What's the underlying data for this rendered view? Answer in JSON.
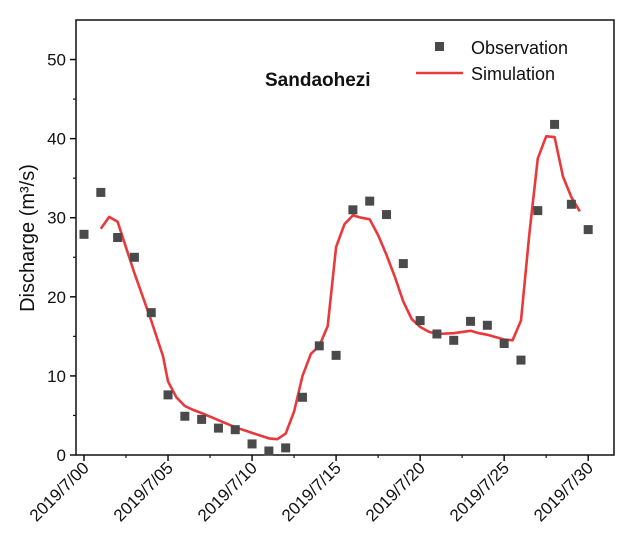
{
  "chart_data": {
    "type": "line",
    "title": "Sandaohezi",
    "xlabel": "",
    "ylabel": "Discharge  (m³/s)",
    "xlim": [
      0,
      31
    ],
    "ylim": [
      0,
      55
    ],
    "yticks": [
      0,
      10,
      20,
      30,
      40,
      50
    ],
    "ytick_labels": [
      "0",
      "10",
      "20",
      "30",
      "40",
      "50"
    ],
    "xticks": [
      0,
      5,
      10,
      15,
      20,
      25,
      30
    ],
    "xtick_labels": [
      "2019/7/00",
      "2019/7/05",
      "2019/7/10",
      "2019/7/15",
      "2019/7/20",
      "2019/7/25",
      "2019/7/30"
    ],
    "grid": false,
    "legend_position": "top-right",
    "series": [
      {
        "name": "Observation",
        "kind": "scatter",
        "marker": "square",
        "color": "#4a4a4a",
        "x": [
          0,
          1,
          2,
          3,
          4,
          5,
          6,
          7,
          8,
          9,
          10,
          11,
          12,
          13,
          14,
          15,
          16,
          17,
          18,
          19,
          20,
          21,
          22,
          23,
          24,
          25,
          26,
          27,
          28,
          29,
          30
        ],
        "y": [
          27.9,
          33.2,
          27.5,
          25.0,
          18.0,
          7.6,
          4.9,
          4.5,
          3.4,
          3.2,
          1.4,
          0.5,
          0.9,
          7.3,
          13.8,
          12.6,
          31.0,
          32.1,
          30.4,
          24.2,
          17.0,
          15.3,
          14.5,
          16.9,
          16.4,
          14.1,
          12.0,
          30.9,
          41.8,
          31.7,
          28.5
        ]
      },
      {
        "name": "Simulation",
        "kind": "line",
        "color": "#e8393c",
        "x": [
          1.0,
          1.5,
          2.0,
          3.0,
          4.0,
          4.7,
          5.0,
          5.5,
          6.0,
          6.5,
          7.0,
          8.0,
          9.0,
          10.0,
          11.0,
          11.5,
          12.0,
          12.5,
          13.0,
          13.5,
          14.0,
          14.5,
          15.0,
          15.5,
          16.0,
          16.5,
          17.0,
          17.5,
          18.0,
          18.5,
          19.0,
          19.5,
          20.0,
          20.5,
          21.0,
          22.0,
          23.0,
          23.5,
          24.0,
          25.0,
          25.5,
          26.0,
          26.5,
          27.0,
          27.5,
          28.0,
          28.5,
          29.0,
          29.5
        ],
        "y": [
          28.6,
          30.1,
          29.5,
          23.0,
          17.0,
          12.5,
          9.3,
          7.3,
          6.2,
          5.7,
          5.3,
          4.4,
          3.5,
          2.8,
          2.1,
          2.0,
          2.7,
          5.5,
          10.0,
          12.8,
          13.8,
          16.3,
          26.3,
          29.2,
          30.3,
          30.0,
          29.8,
          27.8,
          25.3,
          22.5,
          19.4,
          17.2,
          16.2,
          15.6,
          15.3,
          15.4,
          15.7,
          15.4,
          15.2,
          14.6,
          14.5,
          17.0,
          28.0,
          37.5,
          40.3,
          40.2,
          35.2,
          32.6,
          30.8
        ]
      }
    ]
  }
}
